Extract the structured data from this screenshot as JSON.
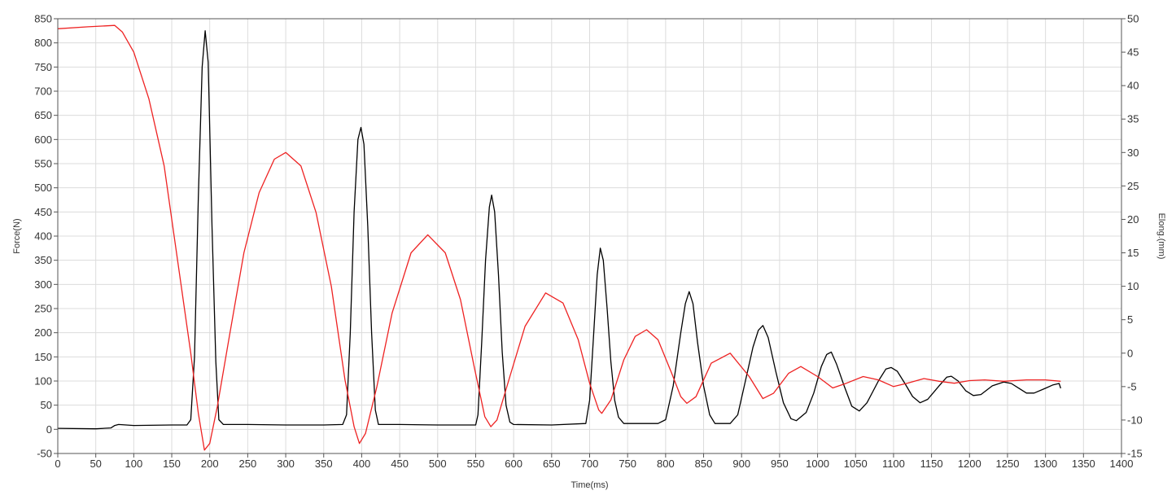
{
  "chart_data": {
    "type": "line",
    "title": "",
    "xlabel": "Time(ms)",
    "ylabel_left": "Force(N)",
    "ylabel_right": "Elong.(mm)",
    "xlim": [
      0,
      1400
    ],
    "ylim_left": [
      -50,
      850
    ],
    "ylim_right": [
      -15,
      50
    ],
    "x_ticks": [
      0,
      50,
      100,
      150,
      200,
      250,
      300,
      350,
      400,
      450,
      500,
      550,
      600,
      650,
      700,
      750,
      800,
      850,
      900,
      950,
      1000,
      1050,
      1100,
      1150,
      1200,
      1250,
      1300,
      1350,
      1400
    ],
    "y_left_ticks": [
      -50,
      0,
      50,
      100,
      150,
      200,
      250,
      300,
      350,
      400,
      450,
      500,
      550,
      600,
      650,
      700,
      750,
      800,
      850
    ],
    "y_right_ticks": [
      -15,
      -10,
      -5,
      0,
      5,
      10,
      15,
      20,
      25,
      30,
      35,
      40,
      45,
      50
    ],
    "grid": true,
    "legend": "none",
    "series": [
      {
        "axis": "left",
        "color": "#000000",
        "points": [
          [
            0,
            2
          ],
          [
            50,
            1
          ],
          [
            70,
            3
          ],
          [
            75,
            8
          ],
          [
            80,
            10
          ],
          [
            100,
            8
          ],
          [
            150,
            9
          ],
          [
            170,
            9
          ],
          [
            175,
            20
          ],
          [
            180,
            150
          ],
          [
            185,
            480
          ],
          [
            190,
            750
          ],
          [
            194,
            825
          ],
          [
            198,
            760
          ],
          [
            203,
            420
          ],
          [
            208,
            140
          ],
          [
            212,
            20
          ],
          [
            218,
            10
          ],
          [
            250,
            10
          ],
          [
            300,
            9
          ],
          [
            350,
            9
          ],
          [
            375,
            10
          ],
          [
            380,
            30
          ],
          [
            385,
            200
          ],
          [
            390,
            450
          ],
          [
            395,
            600
          ],
          [
            399,
            625
          ],
          [
            403,
            590
          ],
          [
            408,
            420
          ],
          [
            413,
            200
          ],
          [
            418,
            40
          ],
          [
            422,
            10
          ],
          [
            450,
            10
          ],
          [
            500,
            9
          ],
          [
            550,
            9
          ],
          [
            553,
            30
          ],
          [
            558,
            180
          ],
          [
            563,
            350
          ],
          [
            568,
            460
          ],
          [
            571,
            485
          ],
          [
            575,
            450
          ],
          [
            580,
            320
          ],
          [
            585,
            160
          ],
          [
            590,
            50
          ],
          [
            595,
            15
          ],
          [
            600,
            10
          ],
          [
            650,
            9
          ],
          [
            695,
            12
          ],
          [
            700,
            60
          ],
          [
            705,
            190
          ],
          [
            710,
            320
          ],
          [
            714,
            375
          ],
          [
            718,
            350
          ],
          [
            723,
            250
          ],
          [
            728,
            140
          ],
          [
            733,
            60
          ],
          [
            738,
            25
          ],
          [
            745,
            12
          ],
          [
            790,
            12
          ],
          [
            800,
            20
          ],
          [
            810,
            90
          ],
          [
            820,
            200
          ],
          [
            826,
            260
          ],
          [
            831,
            285
          ],
          [
            836,
            260
          ],
          [
            842,
            180
          ],
          [
            850,
            90
          ],
          [
            858,
            30
          ],
          [
            865,
            12
          ],
          [
            885,
            12
          ],
          [
            895,
            30
          ],
          [
            905,
            100
          ],
          [
            915,
            170
          ],
          [
            922,
            205
          ],
          [
            928,
            215
          ],
          [
            935,
            190
          ],
          [
            945,
            120
          ],
          [
            955,
            55
          ],
          [
            965,
            22
          ],
          [
            972,
            18
          ],
          [
            985,
            35
          ],
          [
            995,
            75
          ],
          [
            1005,
            130
          ],
          [
            1012,
            155
          ],
          [
            1018,
            160
          ],
          [
            1025,
            135
          ],
          [
            1035,
            90
          ],
          [
            1045,
            48
          ],
          [
            1055,
            38
          ],
          [
            1065,
            55
          ],
          [
            1080,
            100
          ],
          [
            1090,
            125
          ],
          [
            1097,
            128
          ],
          [
            1105,
            120
          ],
          [
            1115,
            95
          ],
          [
            1125,
            68
          ],
          [
            1135,
            55
          ],
          [
            1145,
            62
          ],
          [
            1160,
            90
          ],
          [
            1170,
            108
          ],
          [
            1176,
            110
          ],
          [
            1185,
            100
          ],
          [
            1195,
            80
          ],
          [
            1205,
            70
          ],
          [
            1215,
            72
          ],
          [
            1230,
            90
          ],
          [
            1245,
            98
          ],
          [
            1255,
            95
          ],
          [
            1265,
            85
          ],
          [
            1275,
            75
          ],
          [
            1285,
            75
          ],
          [
            1300,
            85
          ],
          [
            1310,
            92
          ],
          [
            1318,
            95
          ],
          [
            1320,
            85
          ]
        ]
      },
      {
        "axis": "right",
        "color": "#ee2222",
        "points": [
          [
            0,
            48.5
          ],
          [
            40,
            48.8
          ],
          [
            75,
            49
          ],
          [
            85,
            48
          ],
          [
            100,
            45
          ],
          [
            120,
            38
          ],
          [
            140,
            28
          ],
          [
            160,
            12
          ],
          [
            175,
            0
          ],
          [
            185,
            -9
          ],
          [
            193,
            -14.5
          ],
          [
            200,
            -13.5
          ],
          [
            210,
            -8
          ],
          [
            225,
            2
          ],
          [
            245,
            15
          ],
          [
            265,
            24
          ],
          [
            285,
            29
          ],
          [
            300,
            30
          ],
          [
            320,
            28
          ],
          [
            340,
            21
          ],
          [
            360,
            10
          ],
          [
            378,
            -4
          ],
          [
            390,
            -11
          ],
          [
            397,
            -13.5
          ],
          [
            405,
            -12
          ],
          [
            420,
            -5
          ],
          [
            440,
            6
          ],
          [
            465,
            15
          ],
          [
            487,
            17.7
          ],
          [
            510,
            15
          ],
          [
            530,
            8
          ],
          [
            548,
            -2
          ],
          [
            562,
            -9.5
          ],
          [
            570,
            -11
          ],
          [
            578,
            -10
          ],
          [
            595,
            -3.5
          ],
          [
            615,
            4
          ],
          [
            642,
            9
          ],
          [
            665,
            7.5
          ],
          [
            685,
            2
          ],
          [
            700,
            -4.5
          ],
          [
            712,
            -8.5
          ],
          [
            716,
            -9
          ],
          [
            728,
            -7
          ],
          [
            745,
            -1
          ],
          [
            760,
            2.5
          ],
          [
            775,
            3.5
          ],
          [
            790,
            2
          ],
          [
            808,
            -3
          ],
          [
            820,
            -6.5
          ],
          [
            828,
            -7.5
          ],
          [
            840,
            -6.5
          ],
          [
            860,
            -1.5
          ],
          [
            885,
            0
          ],
          [
            910,
            -3.5
          ],
          [
            928,
            -6.8
          ],
          [
            942,
            -6
          ],
          [
            962,
            -3
          ],
          [
            978,
            -2
          ],
          [
            1000,
            -3.5
          ],
          [
            1020,
            -5.2
          ],
          [
            1038,
            -4.5
          ],
          [
            1060,
            -3.5
          ],
          [
            1080,
            -4
          ],
          [
            1100,
            -5
          ],
          [
            1118,
            -4.5
          ],
          [
            1140,
            -3.8
          ],
          [
            1160,
            -4.2
          ],
          [
            1180,
            -4.5
          ],
          [
            1200,
            -4.1
          ],
          [
            1220,
            -4
          ],
          [
            1245,
            -4.2
          ],
          [
            1275,
            -4
          ],
          [
            1300,
            -4
          ],
          [
            1320,
            -4.2
          ]
        ]
      }
    ]
  }
}
